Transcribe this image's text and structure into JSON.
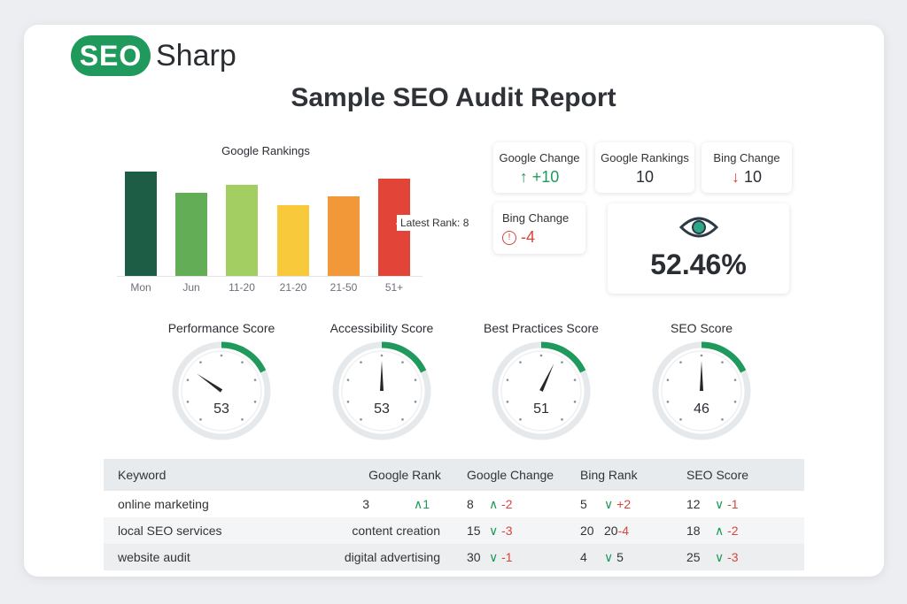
{
  "brand": {
    "logo_badge": "SEO",
    "logo_text": "Sharp"
  },
  "title": "Sample SEO Audit Report",
  "chart_data": {
    "type": "bar",
    "title": "Google Rankings",
    "categories": [
      "Mon",
      "Jun",
      "11-20",
      "21-20",
      "21-50",
      "51+"
    ],
    "values": [
      90,
      72,
      79,
      61,
      69,
      84
    ],
    "colors": [
      "#1d5c45",
      "#63ad57",
      "#a3cf62",
      "#f8c93b",
      "#f39838",
      "#e24537"
    ],
    "ylim": [
      0,
      100
    ],
    "annotation": "Latest Rank: 8",
    "xlabel": "",
    "ylabel": ""
  },
  "kpis": {
    "google_change": {
      "label": "Google Change",
      "value": "+10",
      "icon": "arrow-up-icon"
    },
    "google_rankings": {
      "label": "Google Rankings",
      "value": "10"
    },
    "bing_change": {
      "label": "Bing Change",
      "value": "10",
      "icon": "arrow-down-icon"
    },
    "bing_change2": {
      "label": "Bing Change",
      "value": "-4",
      "icon": "alert-circle-icon"
    },
    "visibility": {
      "value": "52.46%",
      "icon": "eye-icon"
    }
  },
  "gauges": [
    {
      "label": "Performance Score",
      "value": "53",
      "needle_deg": -55
    },
    {
      "label": "Accessibility Score",
      "value": "53",
      "needle_deg": 0
    },
    {
      "label": "Best Practices Score",
      "value": "51",
      "needle_deg": 25
    },
    {
      "label": "SEO Score",
      "value": "46",
      "needle_deg": 0
    }
  ],
  "table": {
    "headers": [
      "Keyword",
      "Google Rank",
      "Google Change",
      "Bing Rank",
      "SEO Score"
    ],
    "rows": [
      [
        "online marketing",
        "3",
        "∧1",
        "8",
        "∧ -2",
        "5",
        "∨ +2",
        "12",
        "∨ -1"
      ],
      [
        "local SEO services",
        "content creation",
        "",
        "15",
        "∨ -3",
        "20",
        "20-4",
        "18",
        "∧ -2"
      ],
      [
        "website audit",
        "digital advertising",
        "",
        "30",
        "∨ -1",
        "4",
        "∨ 5",
        "25",
        "∨ -3"
      ]
    ]
  },
  "colors": {
    "accent": "#1f9a5c",
    "negative": "#d9443a"
  }
}
